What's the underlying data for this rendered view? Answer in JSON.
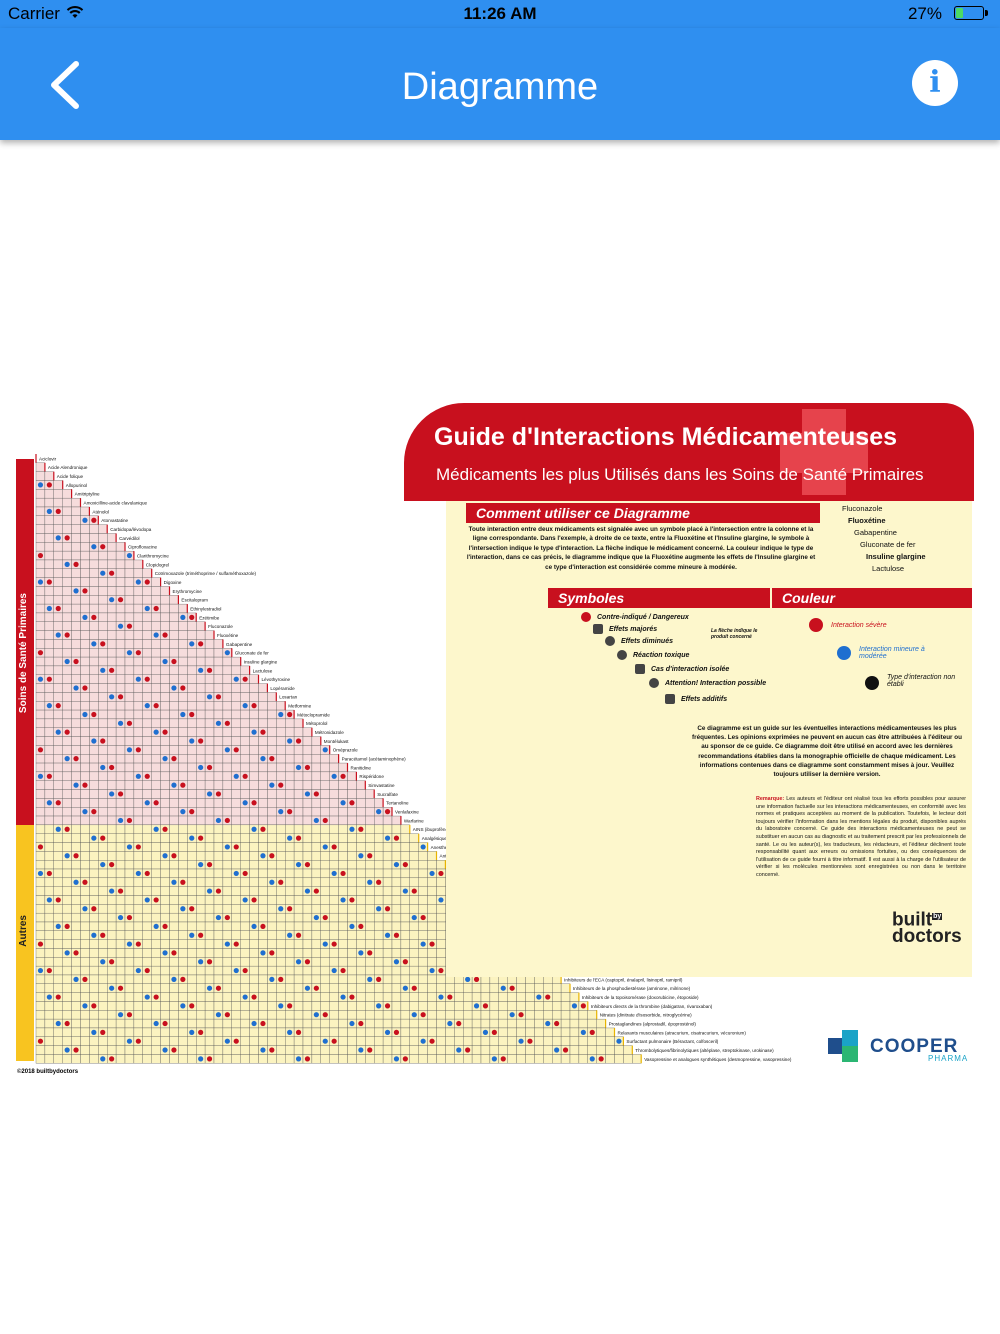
{
  "status_bar": {
    "carrier": "Carrier",
    "time": "11:26 AM",
    "battery_percent": "27%",
    "battery_level": 0.27
  },
  "nav": {
    "title": "Diagramme"
  },
  "poster": {
    "title": "Guide d'Interactions Médicamenteuses",
    "subtitle": "Médicaments les plus Utilisés dans les Soins de Santé Primaires",
    "sections": {
      "howto": "Comment utiliser ce Diagramme",
      "symbols": "Symboles",
      "color": "Couleur"
    },
    "howto_text": "Toute interaction entre deux médicaments est signalée avec un symbole placé à l'intersection entre la colonne et la ligne correspondante. Dans l'exemple, à droite de ce texte, entre la Fluoxétine et l'Insuline glargine, le symbole à l'intersection indique le type d'interaction. La flèche indique le médicament concerné. La couleur indique le type de l'interaction, dans ce cas précis, le diagramme indique que la Fluoxétine augmente les effets de l'Insuline glargine et ce type d'interaction est considérée comme mineure à modérée.",
    "example_drugs": [
      "Fluconazole",
      "Fluoxétine",
      "Gabapentine",
      "Gluconate de fer",
      "Insuline glargine",
      "Lactulose"
    ],
    "symbols": [
      "Contre-indiqué / Dangereux",
      "Effets majorés",
      "Effets diminués",
      "La flèche indique le produit concerné",
      "Réaction toxique",
      "Cas d'interaction isolée",
      "Attention! Interaction possible",
      "Effets additifs"
    ],
    "colors": [
      "Interaction sévère",
      "Interaction mineure à modérée",
      "Type d'interaction non établi"
    ],
    "color_values": {
      "severe": "#c8101e",
      "minor": "#1f6fd0",
      "unknown": "#111111"
    },
    "disclaimer": "Ce diagramme est un guide sur les éventuelles interactions médicamenteuses les plus fréquentes. Les opinions exprimées ne peuvent en aucun cas être attribuées à l'éditeur ou au sponsor de ce guide. Ce diagramme doit être utilisé en accord avec les dernières recommandations établies dans la monographie officielle de chaque médicament. Les informations contenues dans ce diagramme sont constamment mises à jour. Veuillez toujours utiliser la dernière version.",
    "remarque_label": "Remarque:",
    "remarque": "Les auteurs et l'éditeur ont réalisé tous les efforts possibles pour assurer une information factuelle sur les interactions médicamenteuses, en conformité avec les normes et pratiques acceptées au moment de la publication. Toutefois, le lecteur doit toujours vérifier l'information dans les mentions légales du produit, disponibles auprès du laboratoire concerné. Ce guide des interactions médicamenteuses ne peut se substituer en aucun cas au diagnostic et au traitement prescrit par les professionnels de santé. Le ou les auteur(s), les traducteurs, les rédacteurs, et l'éditeur déclinent toute responsabilité quant aux erreurs ou omissions fortuites, ou des conséquences de l'utilisation de ce guide fourni à titre informatif. Il est aussi à la charge de l'utilisateur de vérifier si les molécules mentionnées sont enregistrées ou non dans le territoire concerné.",
    "side_labels": {
      "primary": "Soins de Santé Primaires",
      "others": "Autres"
    },
    "brand_built": "built",
    "brand_by": "by",
    "brand_doctors": "doctors",
    "sponsor": "COOPER",
    "sponsor_sub": "PHARMA",
    "copyright": "©2018 builtbydoctors",
    "drugs": [
      "Aciclovir",
      "Acide Alendronique",
      "Acide folique",
      "Allopurinol",
      "Amitriptyline",
      "Amoxicilline-acide clavulanique",
      "Aténolol",
      "Atorvastatine",
      "Carbidopa/lévodopa",
      "Carvédilol",
      "Ciprofloxacine",
      "Clarithromycine",
      "Clopidogrel",
      "Cotrimoxazole (triméthoprime / sulfaméthoxazole)",
      "Digoxine",
      "Erythromycine",
      "Escitalopram",
      "Ethinylestradiol",
      "Ezétimibe",
      "Fluconazole",
      "Fluoxétine",
      "Gabapentine",
      "Gluconate de fer",
      "Insuline glargine",
      "Lactulose",
      "Lévothyroxine",
      "Lopéramide",
      "Losartan",
      "Metformine",
      "Métoclopramide",
      "Métoprolol",
      "Métronidazole",
      "Montélukast",
      "Oméprazole",
      "Paracétamol (acétaminophène)",
      "Ranitidine",
      "Rispéridone",
      "Simvastatine",
      "Sucralfate",
      "Tertanoline",
      "Venlafaxine",
      "Warfarine"
    ],
    "classes": [
      "AINS (ibuprofène, kétorolac, méloxicam)",
      "Analgésiques opioïdes (fentanyl, morphine, tramadol)",
      "Anesthésiques (isoflurane, propofol)",
      "Antagonistes de la sérotonine 5-HT3 (granisétron, ondansétron)",
      "Antiarythmiques (amiodarone, disopyramide, flécaïnide)",
      "Anticonvulsivants (phénytoïne, acide valproïque)",
      "Anticorps monoclonaux (rituximab, trastuzumab)",
      "Antihistaminiques (cyclizine, clémastine, cétirizine)",
      "Antimitotiques (docétaxel, paclitaxel)",
      "Benzodiazépines (diazépam, lorazépam)",
      "Bêta-agonistes (albutérol/salbutamol, terbutaline)",
      "Catécholamines (dopamine, dobutamine)",
      "Corticostéroïdes (cortisone, dexaméthasone, prednisolone)",
      "Diurétiques de l'anse (bumétanide, furosémide)",
      "Diurétiques épargneurs de potassium (amiloride, spironolactone)",
      "Héparines de faible poids moléculaire (daltéparine, fondaparinux, tinzaparine)",
      "Inhibiteurs calciques (amlodipine, diltiazem, nifédipine, vérapamil)",
      "Inhibiteurs de l'ECA (captopril, énalapril, lisinopril, ramipril)",
      "Inhibiteurs de la phosphodiestérase (amrinone, milrinone)",
      "Inhibiteurs de la topoisomérase (doxorubicine, étoposide)",
      "Inhibiteurs directs de la thrombine (dabigatran, rivaroxaban)",
      "Nitrates (dinitrate d'isosorbide, nitroglycérine)",
      "Prostaglandines (alprostadil, époprosténol)",
      "Relaxants musculaires (atracurium, cisatracurium, vécuronium)",
      "Surfactant pulmonaire (Béractant, colfosceril)",
      "Thrombolytiques/fibrinolytiques (altéplase, streptokinase, urokinase)",
      "Vasopressine et analogues synthétiques (desmopressine, vasopressine)"
    ]
  }
}
